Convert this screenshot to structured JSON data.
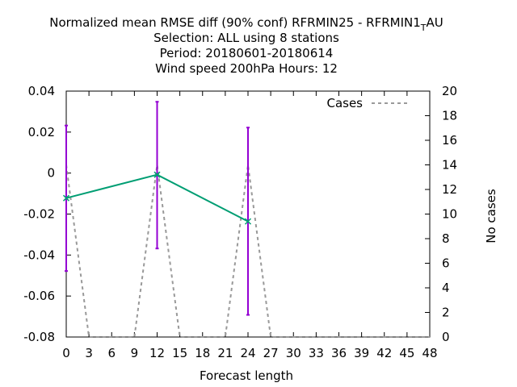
{
  "chart_data": {
    "type": "line",
    "title": [
      "Normalized mean RMSE diff (90% conf) RFRMIN25 - RFRMIN1_TAU",
      "Selection: ALL using     8 stations",
      "Period: 20180601-20180614",
      "Wind speed 200hPa   Hours:  12"
    ],
    "xlabel": "Forecast length",
    "ylabel": "",
    "y2label": "No cases",
    "xlim": [
      0,
      48
    ],
    "ylim": [
      -0.08,
      0.04
    ],
    "y2lim": [
      0,
      20
    ],
    "x_ticks": [
      "0",
      "3",
      "6",
      "9",
      "12",
      "15",
      "18",
      "21",
      "24",
      "27",
      "30",
      "33",
      "36",
      "39",
      "42",
      "45",
      "48"
    ],
    "y_ticks": [
      "0.04",
      "0.02",
      "0",
      "-0.02",
      "-0.04",
      "-0.06",
      "-0.08"
    ],
    "y2_ticks": [
      "20",
      "18",
      "16",
      "14",
      "12",
      "10",
      "8",
      "6",
      "4",
      "2",
      "0"
    ],
    "grid": false,
    "legend_position": "top-right",
    "series": [
      {
        "axis": "y",
        "color": "#009e73",
        "points": [
          {
            "x": 0,
            "y": -0.0122,
            "err_low": -0.0478,
            "err_high": 0.0232
          },
          {
            "x": 12,
            "y": -0.0008,
            "err_low": -0.0368,
            "err_high": 0.0348
          },
          {
            "x": 24,
            "y": -0.0236,
            "err_low": -0.0692,
            "err_high": 0.0222
          }
        ]
      },
      {
        "name": "Cases",
        "axis": "y2",
        "color": "#999999",
        "dashed": true,
        "points": [
          {
            "x": 0,
            "y": 14
          },
          {
            "x": 3,
            "y": 0
          },
          {
            "x": 9,
            "y": 0
          },
          {
            "x": 12,
            "y": 14
          },
          {
            "x": 15,
            "y": 0
          },
          {
            "x": 21,
            "y": 0
          },
          {
            "x": 24,
            "y": 14
          },
          {
            "x": 27,
            "y": 0
          },
          {
            "x": 48,
            "y": 0
          }
        ]
      }
    ],
    "errorbar_color": "#9400d3"
  }
}
